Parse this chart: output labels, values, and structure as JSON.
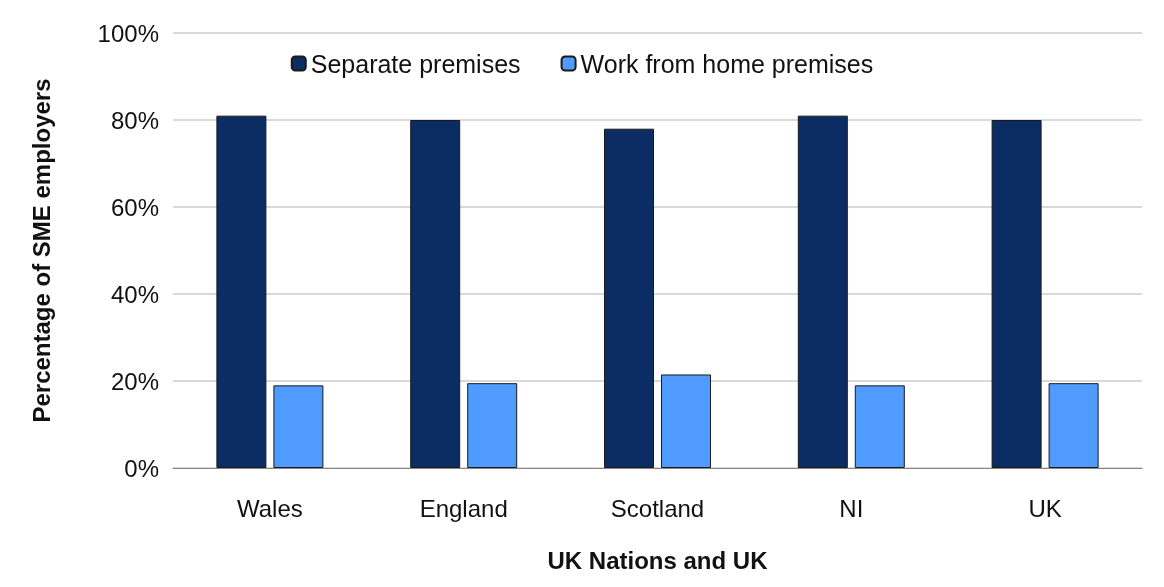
{
  "chart_data": {
    "type": "bar",
    "xlabel": "UK Nations and UK",
    "ylabel": "Percentage of SME employers",
    "categories": [
      "Wales",
      "England",
      "Scotland",
      "NI",
      "UK"
    ],
    "series": [
      {
        "name": "Separate premises",
        "color": "#0b2d63",
        "values": [
          81,
          80,
          78,
          81,
          80
        ]
      },
      {
        "name": "Work from home premises",
        "color": "#4f9bff",
        "values": [
          19,
          19.5,
          21.5,
          19,
          19.5
        ]
      }
    ],
    "ylim": [
      0,
      100
    ],
    "yticks": [
      {
        "value": 0,
        "label": "0%"
      },
      {
        "value": 20,
        "label": "20%"
      },
      {
        "value": 40,
        "label": "40%"
      },
      {
        "value": 60,
        "label": "60%"
      },
      {
        "value": 80,
        "label": "80%"
      },
      {
        "value": 100,
        "label": "100%"
      }
    ],
    "grid": "y",
    "legend": "top"
  }
}
